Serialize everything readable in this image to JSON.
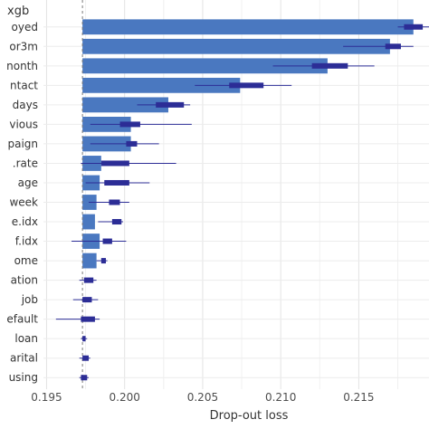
{
  "chart_data": {
    "type": "bar",
    "title": "xgb",
    "xlabel": "Drop-out loss",
    "ylabel": "",
    "baseline": 0.1973,
    "xlim": [
      0.1948,
      0.2195
    ],
    "xticks": [
      "0.195",
      "0.200",
      "0.205",
      "0.210",
      "0.215"
    ],
    "xtick_values": [
      0.195,
      0.2,
      0.205,
      0.21,
      0.215
    ],
    "grid": true,
    "bar_color": "#4a78c0",
    "range_color": "#2c2d96",
    "categories": [
      "oyed",
      "or3m",
      "nonth",
      "ntact",
      "days",
      "vious",
      "paign",
      ".rate",
      "age",
      "week",
      "e.idx",
      "f.idx",
      "ome",
      "ation",
      "job",
      "efault",
      "loan",
      "arital",
      "using"
    ],
    "values": [
      0.2185,
      0.217,
      0.213,
      0.2074,
      0.2028,
      0.2004,
      0.2004,
      0.1985,
      0.1984,
      0.1982,
      0.1981,
      0.1984,
      0.1982,
      null,
      null,
      null,
      null,
      null,
      null
    ],
    "box": [
      [
        0.2179,
        0.2191
      ],
      [
        0.2167,
        0.2177
      ],
      [
        0.212,
        0.2143
      ],
      [
        0.2067,
        0.2089
      ],
      [
        0.202,
        0.2038
      ],
      [
        0.1997,
        0.201
      ],
      [
        0.2001,
        0.2008
      ],
      [
        0.1985,
        0.2003
      ],
      [
        0.1987,
        0.2003
      ],
      [
        0.199,
        0.1997
      ],
      [
        0.1992,
        0.1998
      ],
      [
        0.1986,
        0.1992
      ],
      [
        0.1985,
        0.1988
      ],
      [
        0.1974,
        0.198
      ],
      [
        0.1973,
        0.1979
      ],
      [
        0.1972,
        0.1981
      ],
      [
        0.1973,
        0.1975
      ],
      [
        0.1973,
        0.1977
      ],
      [
        0.1972,
        0.1976
      ]
    ],
    "whisker": [
      [
        0.2175,
        0.2195
      ],
      [
        0.214,
        0.2185
      ],
      [
        0.2095,
        0.216
      ],
      [
        0.2045,
        0.2107
      ],
      [
        0.2008,
        0.2042
      ],
      [
        0.1978,
        0.2043
      ],
      [
        0.1978,
        0.2022
      ],
      [
        0.1972,
        0.2033
      ],
      [
        0.1975,
        0.2016
      ],
      [
        0.1977,
        0.2003
      ],
      [
        0.1983,
        0.1999
      ],
      [
        0.1966,
        0.2001
      ],
      [
        0.1982,
        0.1989
      ],
      [
        0.1971,
        0.1982
      ],
      [
        0.1967,
        0.1983
      ],
      [
        0.1956,
        0.1984
      ],
      [
        0.1972,
        0.1976
      ],
      [
        0.1971,
        0.1978
      ],
      [
        0.1971,
        0.1977
      ]
    ]
  }
}
